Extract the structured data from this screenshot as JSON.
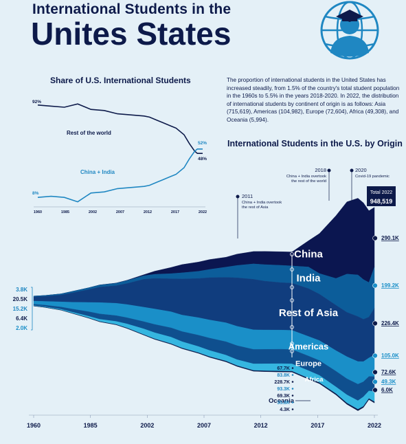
{
  "header": {
    "title_line1": "International Students in the",
    "title_line2": "Unites States"
  },
  "intro_text": "The proportion of international students in the United States has increased steadily, from 1.5% of the country's total student population in the 1960s to 5.5% in the years 2018-2020. In 2022, the distribution of international students by continent of  origin is as follows: Asia (715,619), Americas (104,982), Europe (72,604), Africa (49,308), and Oceania (5,994).",
  "colors": {
    "background": "#e4f0f7",
    "navy": "#0d1a4a",
    "china": "#0b1650",
    "india": "#0c5d9a",
    "rest_of_asia": "#103d7e",
    "americas": "#1a8fc8",
    "europe": "#0f4f8e",
    "africa": "#35b6e0",
    "oceania": "#0d1a4a",
    "accent": "#1f87c2"
  },
  "chart_data": [
    {
      "type": "line",
      "title": "Share of U.S. International Students",
      "x": [
        1960,
        1965,
        1970,
        1975,
        1980,
        1985,
        1990,
        1995,
        2000,
        2002,
        2005,
        2007,
        2010,
        2012,
        2015,
        2017,
        2019,
        2020,
        2021,
        2022
      ],
      "x_tick_labels": [
        "1960",
        "1985",
        "2002",
        "2007",
        "2012",
        "2017",
        "2022"
      ],
      "series": [
        {
          "name": "Rest of the world",
          "values": [
            92,
            91,
            90,
            93,
            88,
            87,
            84,
            83,
            82,
            81,
            78,
            76,
            73,
            71,
            65,
            57,
            50,
            48,
            48,
            48
          ],
          "start_label": "92%",
          "end_label": "48%"
        },
        {
          "name": "China + India",
          "values": [
            8,
            9,
            8,
            4,
            12,
            13,
            16,
            17,
            18,
            19,
            22,
            24,
            27,
            29,
            35,
            43,
            50,
            52,
            52,
            52
          ],
          "start_label": "8%",
          "end_label": "52%"
        }
      ]
    },
    {
      "type": "area",
      "title": "International Students in the U.S. by Origin",
      "x": [
        1960,
        1962,
        1965,
        1967,
        1970,
        1972,
        1975,
        1977,
        1980,
        1982,
        1985,
        1987,
        1990,
        1992,
        1995,
        1997,
        2000,
        2002,
        2005,
        2007,
        2010,
        2012,
        2015,
        2017,
        2019,
        2020,
        2021,
        2022
      ],
      "x_tick_labels": [
        "1960",
        "1985",
        "2002",
        "2007",
        "2012",
        "2017",
        "2022"
      ],
      "series": [
        {
          "name": "Oceania",
          "values": [
            0.5,
            0.6,
            0.8,
            1,
            1.3,
            1.5,
            1.8,
            2,
            2.3,
            2.5,
            2.7,
            2.9,
            3.1,
            3.3,
            3.5,
            3.7,
            3.9,
            4,
            4.1,
            4.3,
            4.5,
            4.9,
            5.6,
            6.2,
            6.5,
            5.8,
            4.9,
            6.0
          ]
        },
        {
          "name": "Africa",
          "values": [
            2.0,
            2.5,
            3.5,
            5,
            8,
            11,
            15,
            20,
            28,
            30,
            32,
            31,
            30,
            30,
            29,
            29,
            32,
            34,
            36,
            35.8,
            37,
            35,
            33,
            40,
            42,
            46,
            37,
            49.3
          ]
        },
        {
          "name": "Europe",
          "values": [
            6.4,
            8,
            11,
            15,
            22,
            26,
            28,
            30,
            35,
            40,
            45,
            49,
            55,
            60,
            65,
            68,
            70,
            70,
            70,
            69.3,
            71,
            72,
            76,
            78,
            80,
            73,
            70,
            72.6
          ]
        },
        {
          "name": "Americas",
          "values": [
            15.2,
            18,
            25,
            33,
            45,
            55,
            60,
            64,
            70,
            75,
            78,
            80,
            85,
            88,
            92,
            94,
            95,
            94,
            93,
            93.3,
            95,
            97,
            100,
            107,
            110,
            98,
            90,
            105.0
          ]
        },
        {
          "name": "Rest of Asia",
          "values": [
            20.5,
            24,
            33,
            45,
            62,
            75,
            85,
            102,
            135,
            148,
            160,
            175,
            190,
            205,
            220,
            235,
            245,
            237,
            230,
            228.7,
            232,
            225,
            220,
            215,
            218,
            205,
            198,
            226.4
          ]
        },
        {
          "name": "India",
          "values": [
            3.8,
            4.5,
            6,
            7.5,
            9,
            10,
            12,
            14,
            17,
            20,
            25,
            30,
            35,
            40,
            50,
            60,
            75,
            80,
            84,
            83.8,
            105,
            100,
            130,
            186,
            202,
            193,
            168,
            199.2
          ]
        },
        {
          "name": "China",
          "values": [
            0.1,
            0.1,
            0.1,
            0.1,
            0.2,
            0.5,
            1,
            2,
            5,
            15,
            30,
            40,
            45,
            48,
            48,
            55,
            60,
            64,
            66,
            67.7,
            127,
            194,
            304,
            350,
            372,
            372,
            348,
            290.1
          ]
        }
      ],
      "segment_labels": [
        "China",
        "India",
        "Rest of Asia",
        "Americas",
        "Europe",
        "Africa",
        "Oceania"
      ],
      "left_labels": [
        "3.8K",
        "20.5K",
        "15.2K",
        "6.4K",
        "2.0K"
      ],
      "right_labels": [
        "290.1K",
        "199.2K",
        "226.4K",
        "105.0K",
        "72.6K",
        "49.3K",
        "6.0K"
      ],
      "mid_labels_2007": [
        "67.7K",
        "83.8K",
        "228.7K",
        "93.3K",
        "69.3K",
        "35.8K",
        "4.3K"
      ],
      "total_label": "Total 2022",
      "total_value": "948,519",
      "annotations": [
        {
          "year": "2011",
          "text1": "China + India overtook",
          "text2": "the rest of Asia"
        },
        {
          "year": "2018",
          "text1": "China + India overtook",
          "text2": "the rest of the world"
        },
        {
          "year": "2020",
          "text1": "Covid-19 pandemic",
          "text2": ""
        }
      ]
    }
  ]
}
